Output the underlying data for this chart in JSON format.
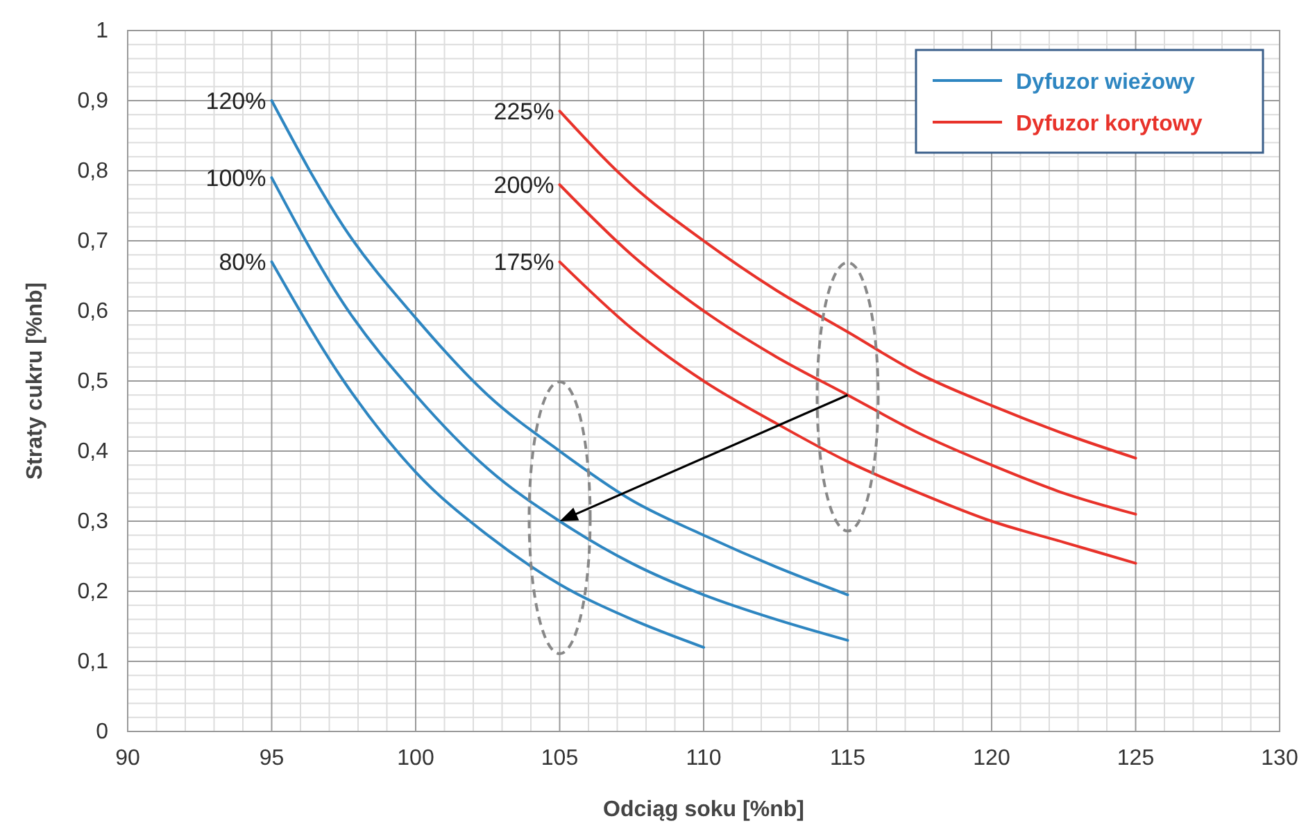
{
  "chart_data": {
    "type": "line",
    "xlabel": "Odciąg soku [%nb]",
    "ylabel": "Straty cukru [%nb]",
    "xlim": [
      90,
      130
    ],
    "xticks": [
      90,
      95,
      100,
      105,
      110,
      115,
      120,
      125,
      130
    ],
    "ylim": [
      0,
      1
    ],
    "yticks": [
      {
        "value": 0,
        "label": "0"
      },
      {
        "value": 0.1,
        "label": "0,1"
      },
      {
        "value": 0.2,
        "label": "0,2"
      },
      {
        "value": 0.3,
        "label": "0,3"
      },
      {
        "value": 0.4,
        "label": "0,4"
      },
      {
        "value": 0.5,
        "label": "0,5"
      },
      {
        "value": 0.6,
        "label": "0,6"
      },
      {
        "value": 0.7,
        "label": "0,7"
      },
      {
        "value": 0.8,
        "label": "0,8"
      },
      {
        "value": 0.9,
        "label": "0,9"
      },
      {
        "value": 1,
        "label": "1"
      }
    ],
    "grid": true,
    "legend": "top right",
    "marker": "none",
    "line_style": "solid",
    "series": [
      {
        "name": "Dyfuzor wieżowy",
        "color": "#2e86c1",
        "x": [
          95,
          97.5,
          100,
          102.5,
          105,
          107.5,
          110,
          112.5,
          115
        ],
        "values": [
          0.9,
          0.72,
          0.59,
          0.48,
          0.4,
          0.33,
          0.28,
          0.235,
          0.195
        ]
      },
      {
        "color": "#2e86c1",
        "x": [
          95,
          97.5,
          100,
          102.5,
          105,
          107.5,
          110,
          112.5,
          115
        ],
        "values": [
          0.79,
          0.61,
          0.48,
          0.375,
          0.3,
          0.24,
          0.195,
          0.16,
          0.13
        ]
      },
      {
        "color": "#2e86c1",
        "x": [
          95,
          97.5,
          100,
          102.5,
          105,
          107.5,
          110
        ],
        "values": [
          0.67,
          0.5,
          0.37,
          0.28,
          0.21,
          0.16,
          0.12
        ]
      },
      {
        "name": "Dyfuzor korytowy",
        "color": "#e8322a",
        "x": [
          105,
          107.5,
          110,
          112.5,
          115,
          117.5,
          120,
          122.5,
          125
        ],
        "values": [
          0.885,
          0.78,
          0.7,
          0.63,
          0.57,
          0.51,
          0.465,
          0.425,
          0.39
        ]
      },
      {
        "color": "#e8322a",
        "x": [
          105,
          107.5,
          110,
          112.5,
          115,
          117.5,
          120,
          122.5,
          125
        ],
        "values": [
          0.78,
          0.68,
          0.6,
          0.535,
          0.48,
          0.425,
          0.38,
          0.34,
          0.31
        ]
      },
      {
        "color": "#e8322a",
        "x": [
          105,
          107.5,
          110,
          112.5,
          115,
          117.5,
          120,
          122.5,
          125
        ],
        "values": [
          0.67,
          0.575,
          0.5,
          0.44,
          0.385,
          0.34,
          0.3,
          0.27,
          0.24
        ]
      }
    ],
    "annotations": [
      "120%",
      "100%",
      "80%",
      "225%",
      "200%",
      "175%"
    ]
  }
}
